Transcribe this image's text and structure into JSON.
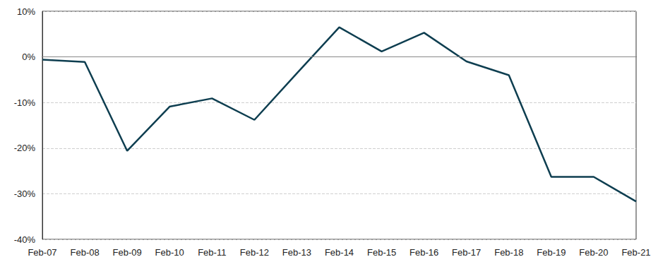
{
  "chart_data": {
    "type": "line",
    "categories": [
      "Feb-07",
      "Feb-08",
      "Feb-09",
      "Feb-10",
      "Feb-11",
      "Feb-12",
      "Feb-13",
      "Feb-14",
      "Feb-15",
      "Feb-16",
      "Feb-17",
      "Feb-18",
      "Feb-19",
      "Feb-20",
      "Feb-21"
    ],
    "values": [
      -0.6,
      -1.1,
      -20.6,
      -10.9,
      -9.1,
      -13.8,
      -3.6,
      6.5,
      1.2,
      5.3,
      -1.0,
      -4.0,
      -26.3,
      -26.3,
      -31.7
    ],
    "color": "#0e3e50",
    "ylim": [
      -40,
      10
    ],
    "yticks": [
      {
        "value": -40,
        "label": "-40%"
      },
      {
        "value": -30,
        "label": "-30%"
      },
      {
        "value": -20,
        "label": "-20%"
      },
      {
        "value": -10,
        "label": "-10%"
      },
      {
        "value": 0,
        "label": "0%"
      },
      {
        "value": 10,
        "label": "10%"
      }
    ],
    "grid": true
  }
}
